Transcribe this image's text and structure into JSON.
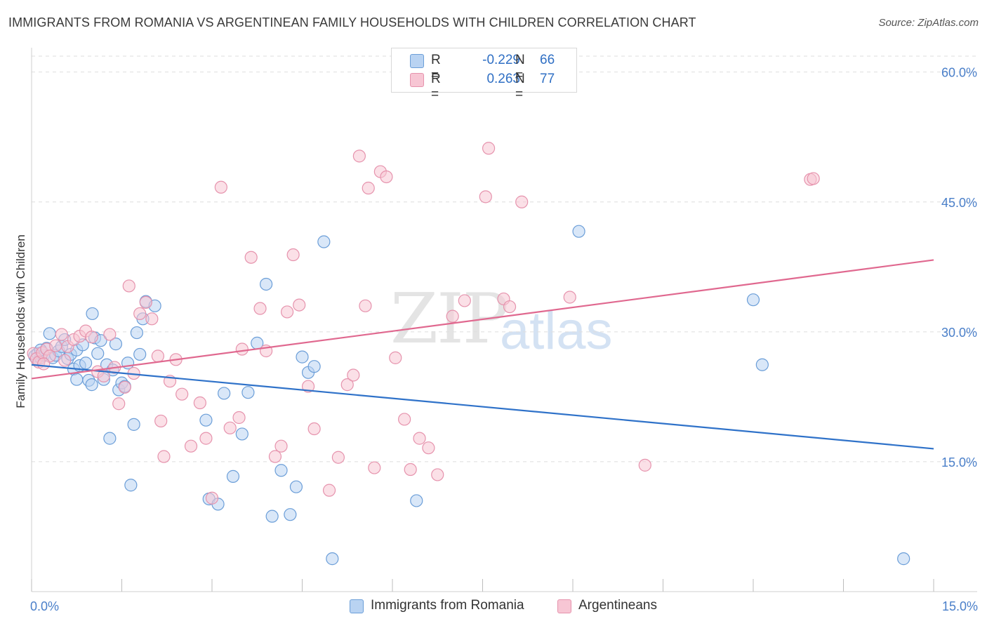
{
  "title": "IMMIGRANTS FROM ROMANIA VS ARGENTINEAN FAMILY HOUSEHOLDS WITH CHILDREN CORRELATION CHART",
  "source": "Source: ZipAtlas.com",
  "watermark": {
    "zip": "ZIP",
    "atlas": "atlas"
  },
  "legend": {
    "rows": [
      {
        "r_label": "R =",
        "r_value": "-0.229",
        "n_label": "N =",
        "n_value": "66"
      },
      {
        "r_label": "R =",
        "r_value": "0.263",
        "n_label": "N =",
        "n_value": "77"
      }
    ]
  },
  "colors": {
    "blue_fill": "#b9d3f2",
    "blue_stroke": "#6b9ed8",
    "blue_line": "#2f72c9",
    "pink_fill": "#f7c6d4",
    "pink_stroke": "#e693ad",
    "pink_line": "#e0688f",
    "axis_text": "#4a7fc9",
    "grid": "#dedede"
  },
  "chart_data": {
    "type": "scatter",
    "title": "IMMIGRANTS FROM ROMANIA VS ARGENTINEAN FAMILY HOUSEHOLDS WITH CHILDREN CORRELATION CHART",
    "xlabel": "",
    "ylabel": "Family Households with Children",
    "xlim": [
      0,
      15
    ],
    "ylim": [
      0,
      62
    ],
    "x_tick_labels": [
      "0.0%",
      "15.0%"
    ],
    "y_ticks": [
      15,
      30,
      45,
      60
    ],
    "y_tick_labels": [
      "15.0%",
      "30.0%",
      "45.0%",
      "60.0%"
    ],
    "grid": true,
    "legend_position": "bottom",
    "series": [
      {
        "name": "Immigrants from Romania",
        "color": "#6b9ed8",
        "trend": {
          "x": [
            0,
            15
          ],
          "y": [
            26.2,
            16.5
          ]
        },
        "points": [
          [
            0.05,
            27.2
          ],
          [
            0.08,
            26.9
          ],
          [
            0.1,
            27.5
          ],
          [
            0.15,
            27.0
          ],
          [
            0.2,
            27.3
          ],
          [
            0.25,
            28.1
          ],
          [
            0.3,
            29.8
          ],
          [
            0.35,
            27.0
          ],
          [
            0.4,
            27.3
          ],
          [
            0.45,
            27.8
          ],
          [
            0.5,
            28.3
          ],
          [
            0.55,
            29.1
          ],
          [
            0.6,
            26.9
          ],
          [
            0.65,
            27.4
          ],
          [
            0.7,
            25.7
          ],
          [
            0.75,
            27.9
          ],
          [
            0.8,
            26.1
          ],
          [
            0.85,
            28.5
          ],
          [
            0.9,
            26.4
          ],
          [
            0.95,
            24.4
          ],
          [
            1.0,
            23.9
          ],
          [
            1.05,
            29.3
          ],
          [
            1.1,
            27.5
          ],
          [
            1.15,
            29.0
          ],
          [
            1.2,
            24.5
          ],
          [
            1.25,
            26.2
          ],
          [
            1.3,
            17.7
          ],
          [
            1.35,
            25.6
          ],
          [
            1.4,
            28.6
          ],
          [
            1.45,
            23.3
          ],
          [
            1.5,
            24.1
          ],
          [
            1.55,
            23.7
          ],
          [
            1.6,
            26.4
          ],
          [
            1.65,
            12.3
          ],
          [
            1.7,
            19.3
          ],
          [
            1.75,
            29.9
          ],
          [
            1.8,
            27.4
          ],
          [
            1.85,
            31.5
          ],
          [
            1.9,
            33.5
          ],
          [
            2.05,
            33.0
          ],
          [
            0.15,
            27.9
          ],
          [
            0.75,
            24.5
          ],
          [
            1.01,
            32.1
          ],
          [
            2.9,
            19.8
          ],
          [
            2.95,
            10.7
          ],
          [
            3.1,
            10.1
          ],
          [
            3.2,
            22.9
          ],
          [
            3.35,
            13.3
          ],
          [
            3.5,
            18.2
          ],
          [
            3.6,
            23.0
          ],
          [
            3.75,
            28.7
          ],
          [
            3.9,
            35.5
          ],
          [
            4.0,
            8.7
          ],
          [
            4.15,
            14.0
          ],
          [
            4.3,
            8.9
          ],
          [
            4.4,
            12.1
          ],
          [
            4.5,
            27.1
          ],
          [
            4.6,
            25.3
          ],
          [
            4.7,
            26.0
          ],
          [
            4.86,
            40.4
          ],
          [
            5.0,
            3.8
          ],
          [
            6.4,
            10.5
          ],
          [
            9.1,
            41.6
          ],
          [
            12.0,
            33.7
          ],
          [
            12.15,
            26.2
          ],
          [
            14.5,
            3.8
          ]
        ]
      },
      {
        "name": "Argentineans",
        "color": "#e693ad",
        "trend": {
          "x": [
            0,
            15
          ],
          "y": [
            24.6,
            38.3
          ]
        },
        "points": [
          [
            0.03,
            27.5
          ],
          [
            0.08,
            26.9
          ],
          [
            0.12,
            26.5
          ],
          [
            0.18,
            27.6
          ],
          [
            0.25,
            28.0
          ],
          [
            0.3,
            27.2
          ],
          [
            0.4,
            28.4
          ],
          [
            0.5,
            29.7
          ],
          [
            0.55,
            26.7
          ],
          [
            0.6,
            28.3
          ],
          [
            0.7,
            29.1
          ],
          [
            0.8,
            29.5
          ],
          [
            0.9,
            30.1
          ],
          [
            1.0,
            29.4
          ],
          [
            1.1,
            25.4
          ],
          [
            1.2,
            24.9
          ],
          [
            1.3,
            29.7
          ],
          [
            1.38,
            25.9
          ],
          [
            1.45,
            21.7
          ],
          [
            1.55,
            23.6
          ],
          [
            1.62,
            35.3
          ],
          [
            1.7,
            25.2
          ],
          [
            1.8,
            32.1
          ],
          [
            1.9,
            33.4
          ],
          [
            2.0,
            31.5
          ],
          [
            2.1,
            27.2
          ],
          [
            2.15,
            19.7
          ],
          [
            2.2,
            15.6
          ],
          [
            2.3,
            24.3
          ],
          [
            2.4,
            26.8
          ],
          [
            2.5,
            22.8
          ],
          [
            2.65,
            16.8
          ],
          [
            2.8,
            21.8
          ],
          [
            2.9,
            17.7
          ],
          [
            3.0,
            10.8
          ],
          [
            3.15,
            46.7
          ],
          [
            3.3,
            18.9
          ],
          [
            3.45,
            20.1
          ],
          [
            3.5,
            28.0
          ],
          [
            3.65,
            38.6
          ],
          [
            3.8,
            32.7
          ],
          [
            3.9,
            27.8
          ],
          [
            4.05,
            15.6
          ],
          [
            4.15,
            16.8
          ],
          [
            4.25,
            32.3
          ],
          [
            4.35,
            38.9
          ],
          [
            4.45,
            33.1
          ],
          [
            4.6,
            23.7
          ],
          [
            4.7,
            18.8
          ],
          [
            4.95,
            11.7
          ],
          [
            5.1,
            15.5
          ],
          [
            5.25,
            23.9
          ],
          [
            5.35,
            25.0
          ],
          [
            5.45,
            50.3
          ],
          [
            5.55,
            33.0
          ],
          [
            5.6,
            46.6
          ],
          [
            5.7,
            14.3
          ],
          [
            5.8,
            48.5
          ],
          [
            5.9,
            47.9
          ],
          [
            6.05,
            27.0
          ],
          [
            6.2,
            19.9
          ],
          [
            6.3,
            14.1
          ],
          [
            6.45,
            17.7
          ],
          [
            6.6,
            16.6
          ],
          [
            6.75,
            13.5
          ],
          [
            7.0,
            31.8
          ],
          [
            7.2,
            33.6
          ],
          [
            7.55,
            45.6
          ],
          [
            7.6,
            51.2
          ],
          [
            7.85,
            33.8
          ],
          [
            7.95,
            32.9
          ],
          [
            8.15,
            45.0
          ],
          [
            8.95,
            34.0
          ],
          [
            10.2,
            14.6
          ],
          [
            12.95,
            47.6
          ],
          [
            13.0,
            47.7
          ],
          [
            0.2,
            26.3
          ]
        ]
      }
    ]
  }
}
